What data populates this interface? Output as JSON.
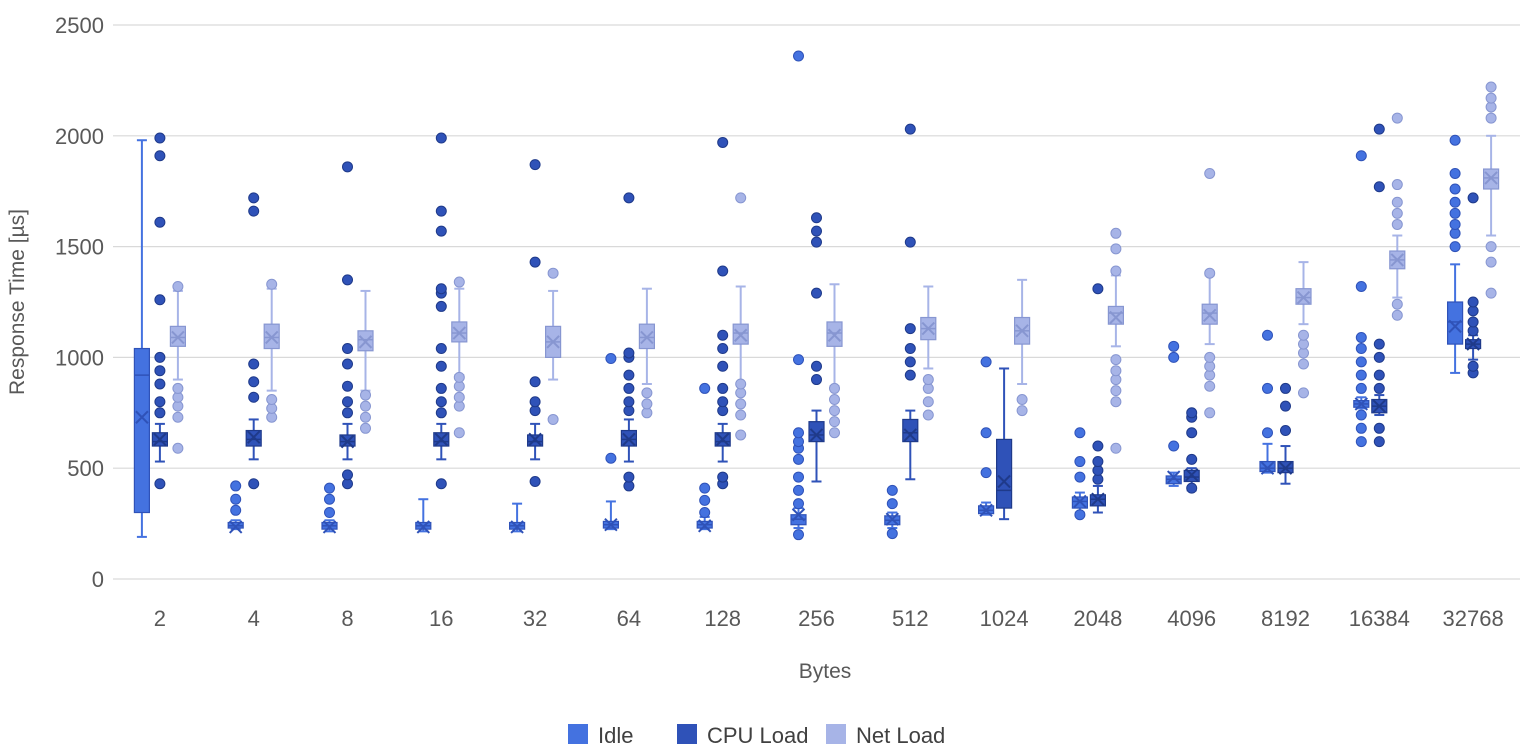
{
  "chart_data": {
    "type": "boxplot",
    "xlabel": "Bytes",
    "ylabel": "Response Time [µs]",
    "ylim": [
      0,
      2500
    ],
    "yticks": [
      0,
      500,
      1000,
      1500,
      2000,
      2500
    ],
    "grid": true,
    "legend_position": "bottom",
    "categories": [
      "2",
      "4",
      "8",
      "16",
      "32",
      "64",
      "128",
      "256",
      "512",
      "1024",
      "2048",
      "4096",
      "8192",
      "16384",
      "32768"
    ],
    "series": [
      {
        "name": "Idle",
        "color": "#4472e0",
        "stats": [
          {
            "min": 190,
            "q1": 300,
            "median": 920,
            "q3": 1040,
            "max": 1980,
            "mean": 730,
            "outliers": []
          },
          {
            "min": 225,
            "q1": 230,
            "median": 240,
            "q3": 255,
            "max": 265,
            "mean": 235,
            "outliers": [
              310,
              360,
              420
            ]
          },
          {
            "min": 215,
            "q1": 225,
            "median": 240,
            "q3": 255,
            "max": 265,
            "mean": 235,
            "outliers": [
              300,
              360,
              410
            ]
          },
          {
            "min": 215,
            "q1": 225,
            "median": 240,
            "q3": 255,
            "max": 360,
            "mean": 235,
            "outliers": []
          },
          {
            "min": 215,
            "q1": 225,
            "median": 240,
            "q3": 255,
            "max": 340,
            "mean": 235,
            "outliers": []
          },
          {
            "min": 225,
            "q1": 230,
            "median": 245,
            "q3": 260,
            "max": 350,
            "mean": 245,
            "outliers": [
              545,
              995
            ]
          },
          {
            "min": 225,
            "q1": 230,
            "median": 245,
            "q3": 260,
            "max": 280,
            "mean": 240,
            "outliers": [
              300,
              355,
              410,
              860
            ]
          },
          {
            "min": 230,
            "q1": 245,
            "median": 270,
            "q3": 290,
            "max": 320,
            "mean": 290,
            "outliers": [
              200,
              340,
              400,
              460,
              540,
              590,
              620,
              660,
              990,
              2360
            ]
          },
          {
            "min": 230,
            "q1": 245,
            "median": 265,
            "q3": 285,
            "max": 300,
            "mean": 270,
            "outliers": [
              205,
              340,
              400
            ]
          },
          {
            "min": 290,
            "q1": 295,
            "median": 310,
            "q3": 330,
            "max": 345,
            "mean": 310,
            "outliers": [
              480,
              660,
              980
            ]
          },
          {
            "min": 300,
            "q1": 320,
            "median": 350,
            "q3": 370,
            "max": 390,
            "mean": 350,
            "outliers": [
              290,
              460,
              530,
              660
            ]
          },
          {
            "min": 420,
            "q1": 430,
            "median": 450,
            "q3": 465,
            "max": 480,
            "mean": 460,
            "outliers": [
              600,
              1000,
              1050
            ]
          },
          {
            "min": 480,
            "q1": 485,
            "median": 500,
            "q3": 530,
            "max": 610,
            "mean": 500,
            "outliers": [
              660,
              860,
              1100
            ]
          },
          {
            "min": 770,
            "q1": 775,
            "median": 790,
            "q3": 805,
            "max": 820,
            "mean": 790,
            "outliers": [
              620,
              680,
              740,
              860,
              920,
              980,
              1040,
              1090,
              1320,
              1910
            ]
          },
          {
            "min": 930,
            "q1": 1060,
            "median": 1160,
            "q3": 1250,
            "max": 1420,
            "mean": 1140,
            "outliers": [
              1500,
              1560,
              1600,
              1650,
              1700,
              1760,
              1830,
              1980
            ]
          }
        ]
      },
      {
        "name": "CPU Load",
        "color": "#2f52b8",
        "stats": [
          {
            "min": 530,
            "q1": 600,
            "median": 620,
            "q3": 660,
            "max": 700,
            "mean": 630,
            "outliers": [
              430,
              750,
              800,
              880,
              940,
              1000,
              1260,
              1610,
              1910,
              1990
            ]
          },
          {
            "min": 540,
            "q1": 600,
            "median": 630,
            "q3": 670,
            "max": 720,
            "mean": 640,
            "outliers": [
              430,
              820,
              890,
              970,
              1660,
              1720
            ]
          },
          {
            "min": 540,
            "q1": 600,
            "median": 620,
            "q3": 650,
            "max": 700,
            "mean": 620,
            "outliers": [
              430,
              470,
              750,
              800,
              870,
              970,
              1040,
              1350,
              1860
            ]
          },
          {
            "min": 540,
            "q1": 600,
            "median": 620,
            "q3": 660,
            "max": 700,
            "mean": 630,
            "outliers": [
              430,
              750,
              800,
              860,
              960,
              1040,
              1230,
              1290,
              1310,
              1570,
              1660,
              1990
            ]
          },
          {
            "min": 540,
            "q1": 600,
            "median": 620,
            "q3": 650,
            "max": 700,
            "mean": 630,
            "outliers": [
              440,
              760,
              800,
              890,
              1430,
              1870
            ]
          },
          {
            "min": 530,
            "q1": 600,
            "median": 630,
            "q3": 670,
            "max": 720,
            "mean": 630,
            "outliers": [
              420,
              460,
              760,
              800,
              860,
              920,
              1000,
              1020,
              1720
            ]
          },
          {
            "min": 530,
            "q1": 600,
            "median": 620,
            "q3": 660,
            "max": 700,
            "mean": 630,
            "outliers": [
              430,
              460,
              760,
              800,
              860,
              960,
              1040,
              1100,
              1390,
              1970
            ]
          },
          {
            "min": 440,
            "q1": 620,
            "median": 650,
            "q3": 710,
            "max": 760,
            "mean": 650,
            "outliers": [
              900,
              960,
              1290,
              1520,
              1570,
              1630
            ]
          },
          {
            "min": 450,
            "q1": 620,
            "median": 660,
            "q3": 720,
            "max": 760,
            "mean": 650,
            "outliers": [
              920,
              980,
              1040,
              1130,
              1520,
              2030
            ]
          },
          {
            "min": 270,
            "q1": 320,
            "median": 400,
            "q3": 630,
            "max": 950,
            "mean": 440,
            "outliers": []
          },
          {
            "min": 300,
            "q1": 330,
            "median": 360,
            "q3": 380,
            "max": 420,
            "mean": 360,
            "outliers": [
              450,
              490,
              530,
              600,
              1310
            ]
          },
          {
            "min": 400,
            "q1": 440,
            "median": 460,
            "q3": 490,
            "max": 500,
            "mean": 470,
            "outliers": [
              410,
              540,
              660,
              730,
              750
            ]
          },
          {
            "min": 430,
            "q1": 480,
            "median": 500,
            "q3": 530,
            "max": 600,
            "mean": 500,
            "outliers": [
              670,
              780,
              860
            ]
          },
          {
            "min": 740,
            "q1": 750,
            "median": 780,
            "q3": 810,
            "max": 830,
            "mean": 780,
            "outliers": [
              620,
              680,
              860,
              920,
              1000,
              1060,
              1770,
              2030
            ]
          },
          {
            "min": 990,
            "q1": 1040,
            "median": 1060,
            "q3": 1080,
            "max": 1100,
            "mean": 1060,
            "outliers": [
              930,
              960,
              1120,
              1160,
              1210,
              1250,
              1720
            ]
          }
        ]
      },
      {
        "name": "Net Load",
        "color": "#a7b4e7",
        "stats": [
          {
            "min": 900,
            "q1": 1050,
            "median": 1090,
            "q3": 1140,
            "max": 1300,
            "mean": 1090,
            "outliers": [
              590,
              730,
              780,
              820,
              860,
              1320
            ]
          },
          {
            "min": 850,
            "q1": 1040,
            "median": 1090,
            "q3": 1150,
            "max": 1310,
            "mean": 1090,
            "outliers": [
              730,
              770,
              810,
              1330
            ]
          },
          {
            "min": 850,
            "q1": 1030,
            "median": 1080,
            "q3": 1120,
            "max": 1300,
            "mean": 1070,
            "outliers": [
              680,
              730,
              780,
              830
            ]
          },
          {
            "min": 920,
            "q1": 1070,
            "median": 1110,
            "q3": 1160,
            "max": 1310,
            "mean": 1110,
            "outliers": [
              660,
              780,
              820,
              870,
              910,
              1340
            ]
          },
          {
            "min": 900,
            "q1": 1000,
            "median": 1070,
            "q3": 1140,
            "max": 1300,
            "mean": 1070,
            "outliers": [
              720,
              1380
            ]
          },
          {
            "min": 880,
            "q1": 1040,
            "median": 1090,
            "q3": 1150,
            "max": 1310,
            "mean": 1090,
            "outliers": [
              750,
              790,
              840
            ]
          },
          {
            "min": 880,
            "q1": 1060,
            "median": 1110,
            "q3": 1150,
            "max": 1320,
            "mean": 1100,
            "outliers": [
              650,
              740,
              790,
              840,
              880,
              1720
            ]
          },
          {
            "min": 870,
            "q1": 1050,
            "median": 1110,
            "q3": 1160,
            "max": 1330,
            "mean": 1100,
            "outliers": [
              660,
              710,
              760,
              810,
              860
            ]
          },
          {
            "min": 950,
            "q1": 1080,
            "median": 1130,
            "q3": 1180,
            "max": 1320,
            "mean": 1130,
            "outliers": [
              740,
              800,
              860,
              900
            ]
          },
          {
            "min": 880,
            "q1": 1060,
            "median": 1120,
            "q3": 1180,
            "max": 1350,
            "mean": 1120,
            "outliers": [
              760,
              810
            ]
          },
          {
            "min": 1050,
            "q1": 1150,
            "median": 1200,
            "q3": 1230,
            "max": 1370,
            "mean": 1180,
            "outliers": [
              590,
              800,
              850,
              900,
              940,
              990,
              1390,
              1490,
              1560
            ]
          },
          {
            "min": 1060,
            "q1": 1150,
            "median": 1200,
            "q3": 1240,
            "max": 1370,
            "mean": 1190,
            "outliers": [
              750,
              870,
              920,
              960,
              1000,
              1380,
              1830
            ]
          },
          {
            "min": 1150,
            "q1": 1240,
            "median": 1270,
            "q3": 1310,
            "max": 1430,
            "mean": 1270,
            "outliers": [
              840,
              970,
              1020,
              1060,
              1100
            ]
          },
          {
            "min": 1270,
            "q1": 1400,
            "median": 1440,
            "q3": 1480,
            "max": 1550,
            "mean": 1440,
            "outliers": [
              1190,
              1240,
              1600,
              1650,
              1700,
              1780,
              2080
            ]
          },
          {
            "min": 1550,
            "q1": 1760,
            "median": 1810,
            "q3": 1850,
            "max": 2000,
            "mean": 1810,
            "outliers": [
              1290,
              1430,
              1500,
              2080,
              2130,
              2170,
              2220
            ]
          }
        ]
      }
    ]
  }
}
